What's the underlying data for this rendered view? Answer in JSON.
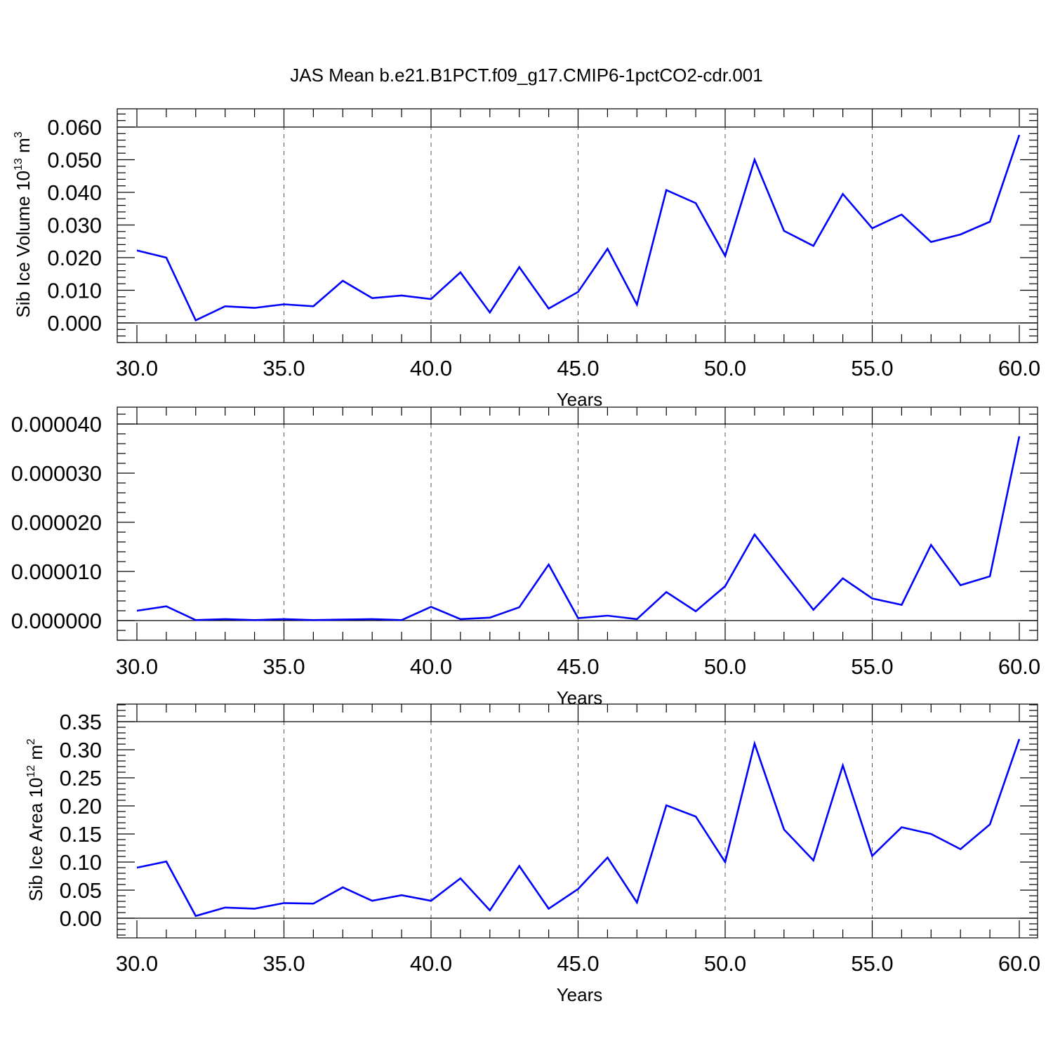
{
  "title": "JAS Mean b.e21.B1PCT.f09_g17.CMIP6-1pctCO2-cdr.001",
  "colors": {
    "series": "#0000ff",
    "axis": "#000000",
    "grid": "#555555"
  },
  "chart_data": [
    {
      "type": "line",
      "ylabel": "Sib Ice Volume 10",
      "ylabel_exp": "13",
      "ylabel_unit": " m",
      "ylabel_unit_exp": "3",
      "xlabel": "Years",
      "xlim": [
        30,
        60
      ],
      "ylim": [
        0,
        0.06
      ],
      "xticks": [
        30,
        35,
        40,
        45,
        50,
        55,
        60
      ],
      "xtick_labels": [
        "30.0",
        "35.0",
        "40.0",
        "45.0",
        "50.0",
        "55.0",
        "60.0"
      ],
      "yticks": [
        0,
        0.01,
        0.02,
        0.03,
        0.04,
        0.05,
        0.06
      ],
      "ytick_labels": [
        "0.000",
        "0.010",
        "0.020",
        "0.030",
        "0.040",
        "0.050",
        "0.060"
      ],
      "grid": "vertical dashed at major x ticks",
      "x": [
        30,
        31,
        32,
        33,
        34,
        35,
        36,
        37,
        38,
        39,
        40,
        41,
        42,
        43,
        44,
        45,
        46,
        47,
        48,
        49,
        50,
        51,
        52,
        53,
        54,
        55,
        56,
        57,
        58,
        59,
        60
      ],
      "series": [
        {
          "values": [
            0.0222,
            0.02,
            0.0008,
            0.0051,
            0.0046,
            0.0057,
            0.0051,
            0.0129,
            0.0076,
            0.0084,
            0.0073,
            0.0155,
            0.0032,
            0.0171,
            0.0044,
            0.0095,
            0.0227,
            0.0056,
            0.0407,
            0.0367,
            0.0205,
            0.05,
            0.0282,
            0.0236,
            0.0395,
            0.029,
            0.0332,
            0.0248,
            0.0271,
            0.031,
            0.0576
          ]
        }
      ]
    },
    {
      "type": "line",
      "ylabel": "",
      "xlabel": "Years",
      "xlim": [
        30,
        60
      ],
      "ylim": [
        0,
        4e-05
      ],
      "xticks": [
        30,
        35,
        40,
        45,
        50,
        55,
        60
      ],
      "xtick_labels": [
        "30.0",
        "35.0",
        "40.0",
        "45.0",
        "50.0",
        "55.0",
        "60.0"
      ],
      "yticks": [
        0,
        1e-05,
        2e-05,
        3e-05,
        4e-05
      ],
      "ytick_labels": [
        "0.000000",
        "0.000010",
        "0.000020",
        "0.000030",
        "0.000040"
      ],
      "grid": "vertical dashed at major x ticks",
      "x": [
        30,
        31,
        32,
        33,
        34,
        35,
        36,
        37,
        38,
        39,
        40,
        41,
        42,
        43,
        44,
        45,
        46,
        47,
        48,
        49,
        50,
        51,
        52,
        53,
        54,
        55,
        56,
        57,
        58,
        59,
        60
      ],
      "series": [
        {
          "values": [
            2e-06,
            2.9e-06,
            1e-07,
            3e-07,
            1e-07,
            3e-07,
            1e-07,
            2e-07,
            3e-07,
            1e-07,
            2.8e-06,
            3e-07,
            6e-07,
            2.7e-06,
            1.14e-05,
            5e-07,
            1e-06,
            3e-07,
            5.8e-06,
            1.9e-06,
            7e-06,
            1.75e-05,
            9.8e-06,
            2.2e-06,
            8.6e-06,
            4.5e-06,
            3.2e-06,
            1.54e-05,
            7.2e-06,
            9e-06,
            3.75e-05
          ]
        }
      ]
    },
    {
      "type": "line",
      "ylabel": "Sib Ice Area 10",
      "ylabel_exp": "12",
      "ylabel_unit": " m",
      "ylabel_unit_exp": "2",
      "xlabel": "Years",
      "xlim": [
        30,
        60
      ],
      "ylim": [
        0,
        0.35
      ],
      "xticks": [
        30,
        35,
        40,
        45,
        50,
        55,
        60
      ],
      "xtick_labels": [
        "30.0",
        "35.0",
        "40.0",
        "45.0",
        "50.0",
        "55.0",
        "60.0"
      ],
      "yticks": [
        0,
        0.05,
        0.1,
        0.15,
        0.2,
        0.25,
        0.3,
        0.35
      ],
      "ytick_labels": [
        "0.00",
        "0.05",
        "0.10",
        "0.15",
        "0.20",
        "0.25",
        "0.30",
        "0.35"
      ],
      "grid": "vertical dashed at major x ticks",
      "x": [
        30,
        31,
        32,
        33,
        34,
        35,
        36,
        37,
        38,
        39,
        40,
        41,
        42,
        43,
        44,
        45,
        46,
        47,
        48,
        49,
        50,
        51,
        52,
        53,
        54,
        55,
        56,
        57,
        58,
        59,
        60
      ],
      "series": [
        {
          "values": [
            0.09,
            0.101,
            0.004,
            0.019,
            0.017,
            0.027,
            0.026,
            0.055,
            0.031,
            0.041,
            0.031,
            0.071,
            0.014,
            0.093,
            0.017,
            0.052,
            0.108,
            0.028,
            0.201,
            0.181,
            0.1,
            0.311,
            0.158,
            0.103,
            0.272,
            0.111,
            0.162,
            0.15,
            0.123,
            0.167,
            0.319
          ]
        }
      ]
    }
  ]
}
